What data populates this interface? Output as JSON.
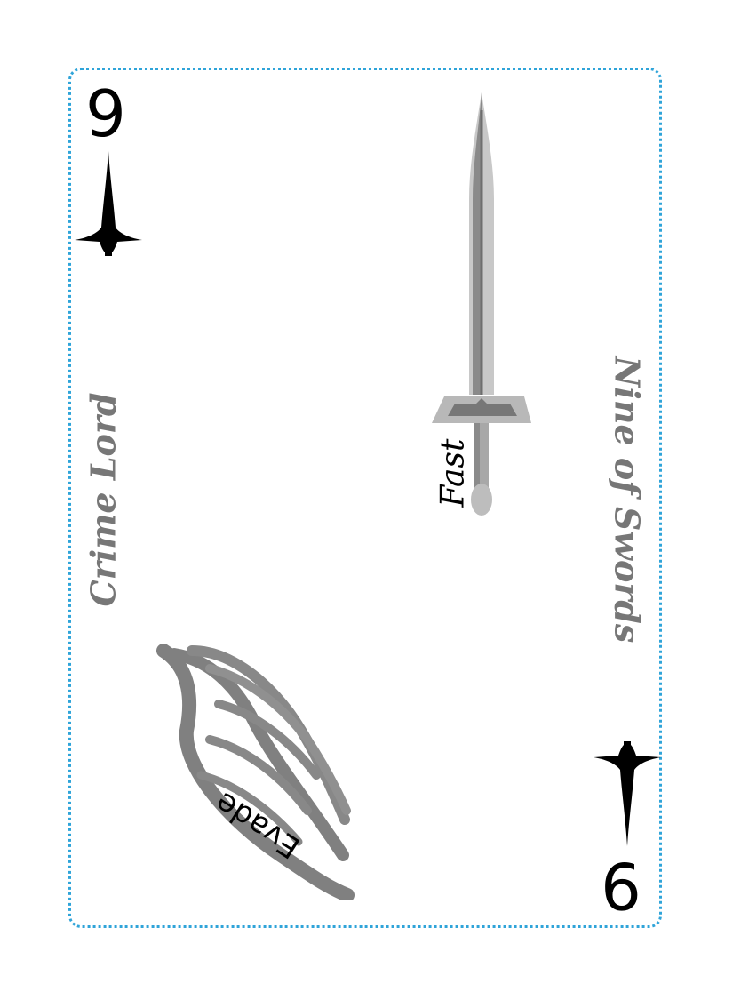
{
  "card": {
    "rank": "9",
    "suit_icon": "sword-pip-icon",
    "title_left": "Crime Lord",
    "title_right": "Nine of Swords",
    "traits": [
      {
        "label": "Fast",
        "icon": "sword-icon"
      },
      {
        "label": "Evade",
        "icon": "wing-icon"
      }
    ]
  },
  "colors": {
    "border": "#2fa4d9",
    "text_gray": "#777777",
    "ink": "#000000"
  }
}
